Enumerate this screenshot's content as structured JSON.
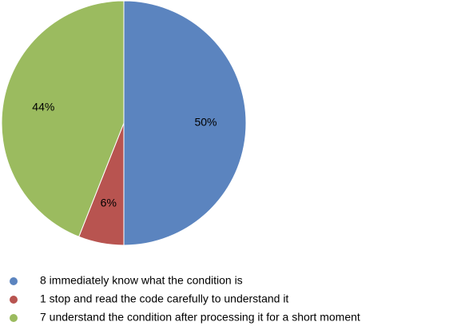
{
  "chart_data": {
    "type": "pie",
    "categories": [
      "8 immediately know what the condition is",
      "1 stop and read the code carefully to understand it",
      "7 understand the condition after processing it for a short moment"
    ],
    "values": [
      50,
      6,
      44
    ],
    "value_labels": [
      "50%",
      "6%",
      "44%"
    ],
    "colors": [
      "#5b84bf",
      "#b85450",
      "#9bbb5f"
    ]
  }
}
